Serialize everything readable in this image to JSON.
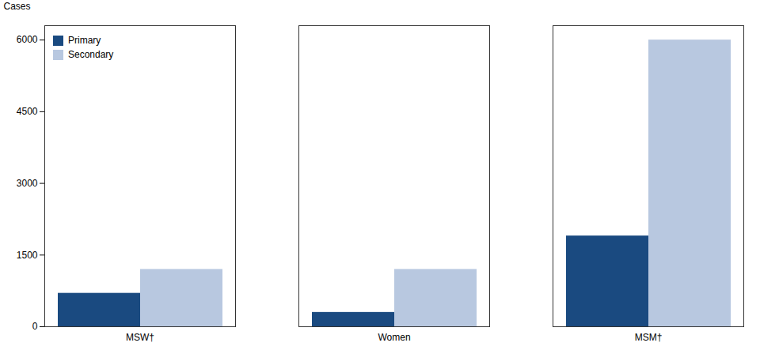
{
  "chart_data": {
    "type": "bar",
    "categories": [
      "MSW†",
      "Women",
      "MSM†"
    ],
    "series": [
      {
        "name": "Primary",
        "color": "#1a4a80",
        "values": [
          700,
          300,
          1900
        ]
      },
      {
        "name": "Secondary",
        "color": "#b8c8e0",
        "values": [
          1200,
          1200,
          6000
        ]
      }
    ],
    "ylabel": "Cases",
    "ylim": [
      0,
      6300
    ],
    "yticks": [
      0,
      1500,
      3000,
      4500,
      6000
    ],
    "grid": false,
    "legend": "upper left"
  }
}
